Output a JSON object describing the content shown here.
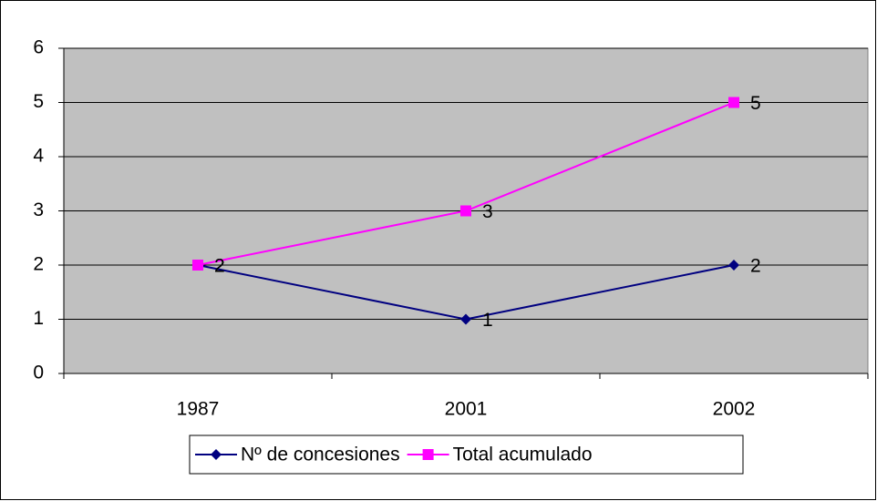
{
  "chart_data": {
    "type": "line",
    "categories": [
      "1987",
      "2001",
      "2002"
    ],
    "series": [
      {
        "name": "Nº de concesiones",
        "color": "#000080",
        "marker": "diamond",
        "values": [
          2,
          1,
          2
        ]
      },
      {
        "name": "Total acumulado",
        "color": "#FF00FF",
        "marker": "square",
        "values": [
          2,
          3,
          5
        ]
      }
    ],
    "ylim": [
      0,
      6
    ],
    "yticks": [
      0,
      1,
      2,
      3,
      4,
      5,
      6
    ],
    "grid": true,
    "plot_background": "#C0C0C0",
    "legend": "bottom"
  }
}
